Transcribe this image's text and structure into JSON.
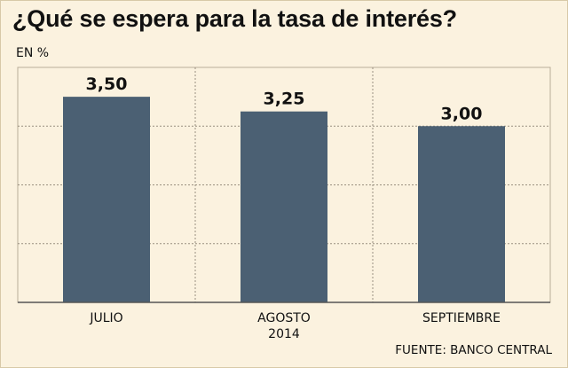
{
  "title": "¿Qué se espera para la tasa de interés?",
  "unit_label": "EN %",
  "source": "FUENTE: BANCO CENTRAL",
  "colors": {
    "bar": "#4b6073",
    "background": "#fbf2df",
    "grid": "#9a9080"
  },
  "chart_data": {
    "type": "bar",
    "title": "¿Qué se espera para la tasa de interés?",
    "ylabel": "EN %",
    "xlabel": "",
    "categories": [
      "JULIO",
      "AGOSTO",
      "SEPTIEMBRE"
    ],
    "category_sublabels": [
      "",
      "2014",
      ""
    ],
    "values": [
      3.5,
      3.25,
      3.0
    ],
    "value_labels": [
      "3,50",
      "3,25",
      "3,00"
    ],
    "ylim": [
      0,
      4
    ],
    "grid": true,
    "legend": "none"
  }
}
